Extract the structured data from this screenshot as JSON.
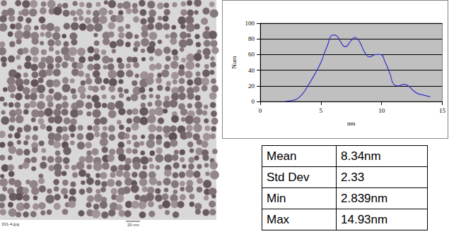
{
  "chart_data": {
    "type": "line",
    "xlabel": "nm",
    "ylabel": "Num",
    "color": "#3333cc",
    "x": [
      2.0,
      2.5,
      3.0,
      3.5,
      4.0,
      4.5,
      5.0,
      5.5,
      6.0,
      6.3,
      6.6,
      7.0,
      7.5,
      7.8,
      8.2,
      8.6,
      9.0,
      9.5,
      9.9,
      10.3,
      10.7,
      11.0,
      11.4,
      11.8,
      12.2,
      12.6,
      13.0,
      13.5,
      14.0
    ],
    "values": [
      0,
      1,
      3,
      10,
      22,
      35,
      50,
      70,
      85,
      84,
      77,
      70,
      78,
      82,
      76,
      63,
      57,
      60,
      60,
      50,
      35,
      22,
      20,
      22,
      20,
      14,
      10,
      8,
      6
    ],
    "xlim": [
      0,
      15
    ],
    "xticks": [
      0,
      5,
      10,
      15
    ],
    "ylim": [
      0,
      100
    ],
    "yticks": [
      0,
      20,
      40,
      60,
      80,
      100
    ],
    "grid": true
  },
  "table": {
    "rows": [
      [
        "Mean",
        "8.34nm"
      ],
      [
        "Std Dev",
        "2.33"
      ],
      [
        "Min",
        "2.839nm"
      ],
      [
        "Max",
        "14.93nm"
      ]
    ]
  },
  "image": {
    "caption": "331-4.jpg",
    "scale_bar": "20 nm"
  }
}
